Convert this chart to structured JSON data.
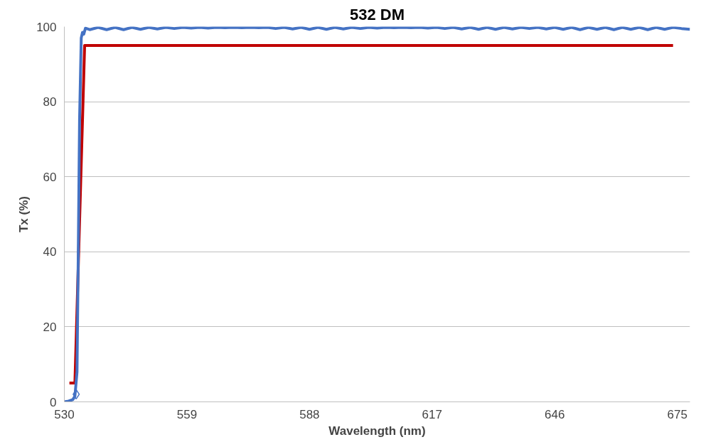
{
  "chart_data": {
    "type": "line",
    "title": "532 DM",
    "xlabel": "Wavelength (nm)",
    "ylabel": "Tx (%)",
    "xlim": [
      530,
      678
    ],
    "ylim": [
      0,
      100
    ],
    "xticks": [
      530,
      559,
      588,
      617,
      646,
      675
    ],
    "yticks": [
      0,
      20,
      40,
      60,
      80,
      100
    ],
    "grid": "y",
    "line_style": "solid",
    "series": [
      {
        "color": "#c00000",
        "x": [
          531.2,
          532.5,
          534.8,
          674
        ],
        "values": [
          5,
          5,
          95,
          95
        ]
      },
      {
        "color": "#4472c4",
        "x": [
          530,
          531,
          532,
          532.5,
          533,
          533.3,
          533.6,
          534,
          534.3,
          534.6,
          535,
          536,
          538,
          540,
          542,
          544,
          546,
          548,
          550,
          552,
          554,
          556,
          558,
          560,
          562,
          564,
          566,
          568,
          570,
          572,
          574,
          576,
          578,
          580,
          582,
          584,
          586,
          588,
          590,
          592,
          594,
          596,
          598,
          600,
          602,
          604,
          606,
          608,
          610,
          612,
          614,
          616,
          618,
          620,
          622,
          624,
          626,
          628,
          630,
          632,
          634,
          636,
          638,
          640,
          642,
          644,
          646,
          648,
          650,
          652,
          654,
          656,
          658,
          660,
          662,
          664,
          666,
          668,
          670,
          672,
          674,
          676,
          678
        ],
        "values": [
          0,
          0.2,
          0.6,
          1.5,
          8,
          40,
          75,
          97,
          98.5,
          98,
          99.6,
          99.2,
          99.8,
          99.2,
          99.8,
          99.2,
          99.8,
          99.3,
          99.8,
          99.4,
          99.8,
          99.5,
          99.8,
          99.6,
          99.8,
          99.6,
          99.8,
          99.7,
          99.8,
          99.7,
          99.8,
          99.7,
          99.8,
          99.5,
          99.8,
          99.4,
          99.8,
          99.3,
          99.8,
          99.3,
          99.8,
          99.4,
          99.8,
          99.5,
          99.8,
          99.6,
          99.8,
          99.7,
          99.8,
          99.7,
          99.8,
          99.6,
          99.8,
          99.5,
          99.8,
          99.4,
          99.8,
          99.3,
          99.8,
          99.3,
          99.8,
          99.4,
          99.8,
          99.5,
          99.8,
          99.4,
          99.8,
          99.3,
          99.8,
          99.2,
          99.8,
          99.3,
          99.8,
          99.2,
          99.8,
          99.3,
          99.8,
          99.2,
          99.8,
          99.3,
          99.8,
          99.5,
          99.3
        ]
      },
      {
        "type": "scatter",
        "color": "#4472c4",
        "marker": "diamond",
        "x": [
          532.8
        ],
        "values": [
          2
        ]
      }
    ]
  }
}
